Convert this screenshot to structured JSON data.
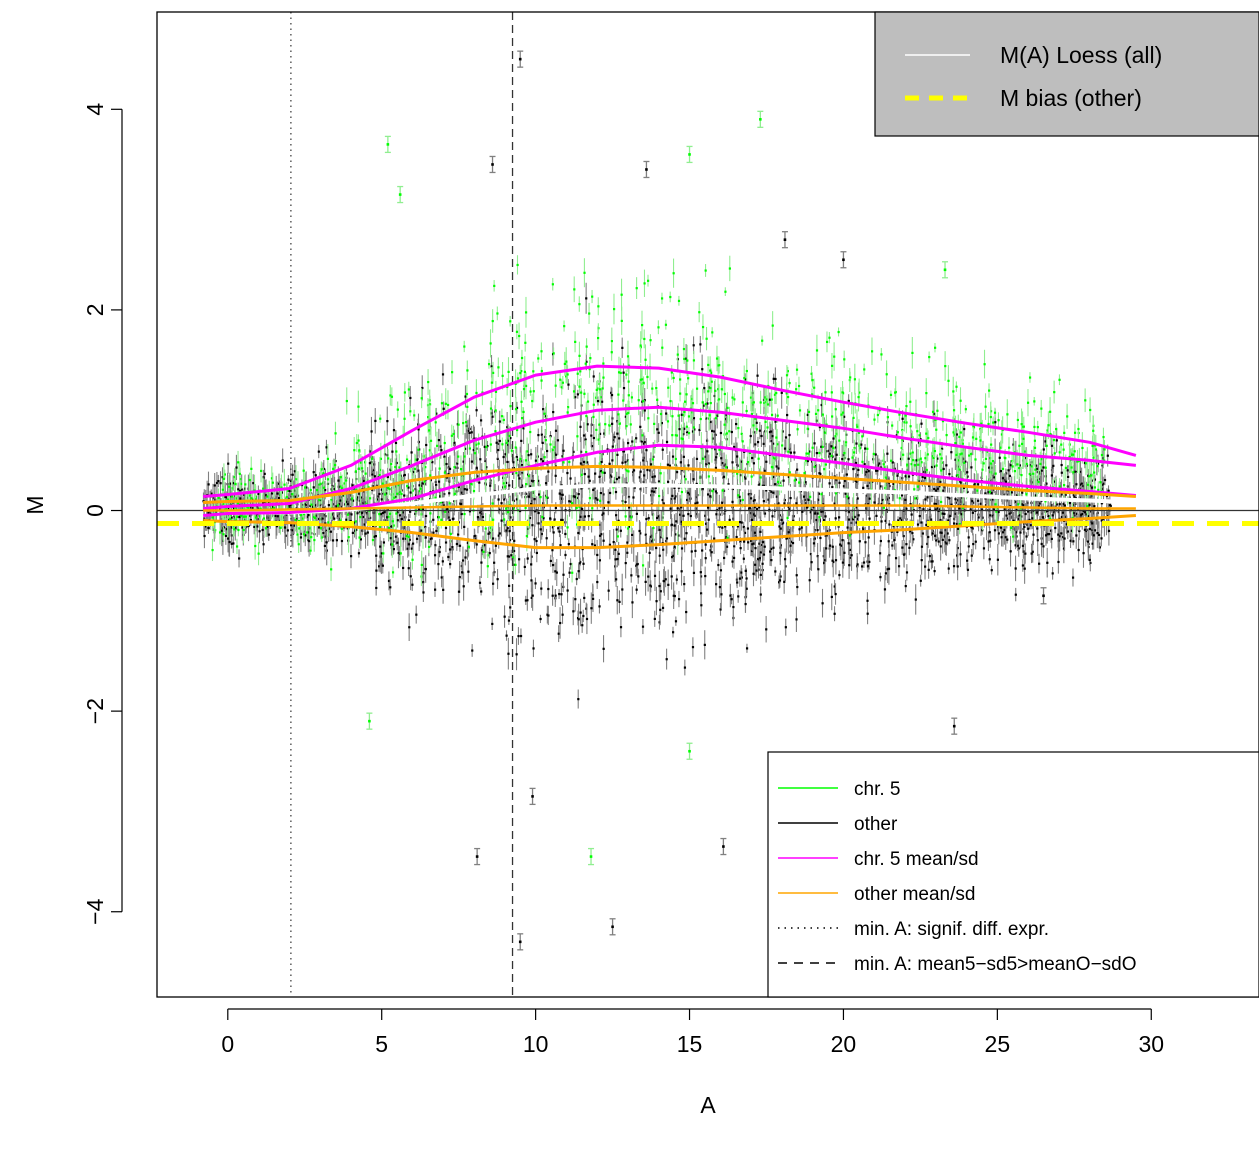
{
  "chart_data": {
    "type": "scatter",
    "title": "",
    "xlabel": "A",
    "ylabel": "M",
    "xlim": [
      -2.3,
      33.5
    ],
    "ylim": [
      -4.85,
      4.97
    ],
    "x_ticks": [
      0,
      5,
      10,
      15,
      20,
      25,
      30
    ],
    "y_ticks": [
      -4,
      -2,
      0,
      2,
      4
    ],
    "x_tick_labels": [
      "0",
      "5",
      "10",
      "15",
      "20",
      "25",
      "30"
    ],
    "y_tick_labels": [
      "−4",
      "−2",
      "0",
      "2",
      "4"
    ],
    "grid": false,
    "colors": {
      "chr5": "#00ff00",
      "chr5_errbar": "#90ee90",
      "other": "#000000",
      "other_errbar": "#808080",
      "chr5_mean_sd": "#ff00ff",
      "other_mean_sd": "#ffa500",
      "loess": "#ffffff",
      "bias": "#ffff00",
      "top_legend_bg": "#bebebe"
    },
    "reference_lines": {
      "zero_line_y": 0,
      "min_A_signif_x": 2.05,
      "min_A_mean5_x": 9.25,
      "m_bias_other_y": -0.13
    },
    "series": [
      {
        "name": "M(A) Loess (all)",
        "x": [
          0,
          2,
          4,
          6,
          8,
          10,
          12,
          14,
          16,
          18,
          20,
          22,
          24,
          26,
          28,
          29.5
        ],
        "y": [
          -0.02,
          -0.02,
          0.01,
          0.07,
          0.15,
          0.22,
          0.25,
          0.25,
          0.24,
          0.22,
          0.2,
          0.18,
          0.15,
          0.12,
          0.1,
          0.08
        ]
      },
      {
        "name": "chr. 5 mean",
        "x": [
          -0.8,
          0,
          2,
          4,
          6,
          8,
          10,
          12,
          14,
          16,
          18,
          20,
          22,
          24,
          26,
          28,
          29.5
        ],
        "y": [
          0.02,
          0.04,
          0.07,
          0.22,
          0.45,
          0.7,
          0.88,
          1.0,
          1.03,
          0.98,
          0.9,
          0.82,
          0.72,
          0.63,
          0.55,
          0.5,
          0.45
        ]
      },
      {
        "name": "chr. 5 mean+sd",
        "x": [
          -0.8,
          0,
          2,
          4,
          6,
          8,
          10,
          12,
          14,
          16,
          18,
          20,
          22,
          24,
          26,
          28,
          29.5
        ],
        "y": [
          0.14,
          0.16,
          0.22,
          0.45,
          0.8,
          1.13,
          1.35,
          1.44,
          1.42,
          1.33,
          1.2,
          1.08,
          0.97,
          0.87,
          0.78,
          0.68,
          0.55
        ]
      },
      {
        "name": "chr. 5 mean-sd",
        "x": [
          -0.8,
          0,
          2,
          4,
          6,
          8,
          10,
          12,
          14,
          16,
          18,
          20,
          22,
          24,
          26,
          28,
          29.5
        ],
        "y": [
          -0.05,
          -0.03,
          -0.02,
          0.02,
          0.12,
          0.3,
          0.45,
          0.58,
          0.65,
          0.63,
          0.55,
          0.47,
          0.38,
          0.3,
          0.24,
          0.19,
          0.15
        ]
      },
      {
        "name": "other mean",
        "x": [
          -0.8,
          0,
          2,
          4,
          6,
          8,
          10,
          12,
          14,
          16,
          18,
          20,
          22,
          24,
          26,
          28,
          29.5
        ],
        "y": [
          0.0,
          0.0,
          0.01,
          0.02,
          0.03,
          0.04,
          0.05,
          0.05,
          0.05,
          0.05,
          0.05,
          0.05,
          0.05,
          0.04,
          0.03,
          0.02,
          0.02
        ]
      },
      {
        "name": "other mean+sd",
        "x": [
          -0.8,
          0,
          2,
          4,
          6,
          8,
          10,
          12,
          14,
          16,
          18,
          20,
          22,
          24,
          26,
          28,
          29.5
        ],
        "y": [
          0.08,
          0.09,
          0.1,
          0.18,
          0.3,
          0.38,
          0.42,
          0.44,
          0.43,
          0.4,
          0.36,
          0.32,
          0.28,
          0.24,
          0.2,
          0.17,
          0.14
        ]
      },
      {
        "name": "other mean-sd",
        "x": [
          -0.8,
          0,
          2,
          4,
          6,
          8,
          10,
          12,
          14,
          16,
          18,
          20,
          22,
          24,
          26,
          28,
          29.5
        ],
        "y": [
          -0.1,
          -0.11,
          -0.12,
          -0.16,
          -0.22,
          -0.3,
          -0.37,
          -0.37,
          -0.34,
          -0.3,
          -0.26,
          -0.22,
          -0.19,
          -0.15,
          -0.11,
          -0.08,
          -0.05
        ]
      }
    ],
    "outliers": [
      {
        "x": 9.5,
        "y": 4.5,
        "group": "other"
      },
      {
        "x": 8.6,
        "y": 3.45,
        "group": "other"
      },
      {
        "x": 13.6,
        "y": 3.4,
        "group": "other"
      },
      {
        "x": 5.2,
        "y": 3.65,
        "group": "chr5"
      },
      {
        "x": 17.3,
        "y": 3.9,
        "group": "chr5"
      },
      {
        "x": 15.0,
        "y": 3.55,
        "group": "chr5"
      },
      {
        "x": 5.6,
        "y": 3.15,
        "group": "chr5"
      },
      {
        "x": 9.5,
        "y": -4.3,
        "group": "other"
      },
      {
        "x": 12.5,
        "y": -4.15,
        "group": "other"
      },
      {
        "x": 8.1,
        "y": -3.45,
        "group": "other"
      },
      {
        "x": 11.8,
        "y": -3.45,
        "group": "chr5"
      },
      {
        "x": 23.6,
        "y": -2.15,
        "group": "other"
      },
      {
        "x": 9.9,
        "y": -2.85,
        "group": "other"
      },
      {
        "x": 16.1,
        "y": -3.35,
        "group": "other"
      },
      {
        "x": 4.6,
        "y": -2.1,
        "group": "chr5"
      },
      {
        "x": 20.0,
        "y": 2.5,
        "group": "other"
      },
      {
        "x": 23.3,
        "y": 2.4,
        "group": "chr5"
      },
      {
        "x": 18.1,
        "y": 2.7,
        "group": "other"
      },
      {
        "x": 26.5,
        "y": -0.85,
        "group": "other"
      },
      {
        "x": 15.0,
        "y": -2.4,
        "group": "chr5"
      }
    ],
    "legends": [
      {
        "placement": "top-right",
        "entries": [
          {
            "label": "M(A) Loess (all)",
            "color": "#ffffff",
            "style": "solid"
          },
          {
            "label": "M bias (other)",
            "color": "#ffff00",
            "style": "dashed"
          }
        ]
      },
      {
        "placement": "bottom-right",
        "entries": [
          {
            "label": "chr. 5",
            "color": "#00ff00",
            "style": "solid"
          },
          {
            "label": "other",
            "color": "#000000",
            "style": "solid"
          },
          {
            "label": "chr. 5 mean/sd",
            "color": "#ff00ff",
            "style": "solid"
          },
          {
            "label": "other mean/sd",
            "color": "#ffa500",
            "style": "solid"
          },
          {
            "label": "min. A: signif. diff. expr.",
            "color": "#000000",
            "style": "dotted"
          },
          {
            "label": "min. A: mean5−sd5>meanO−sdO",
            "color": "#000000",
            "style": "dashed"
          }
        ]
      }
    ]
  }
}
